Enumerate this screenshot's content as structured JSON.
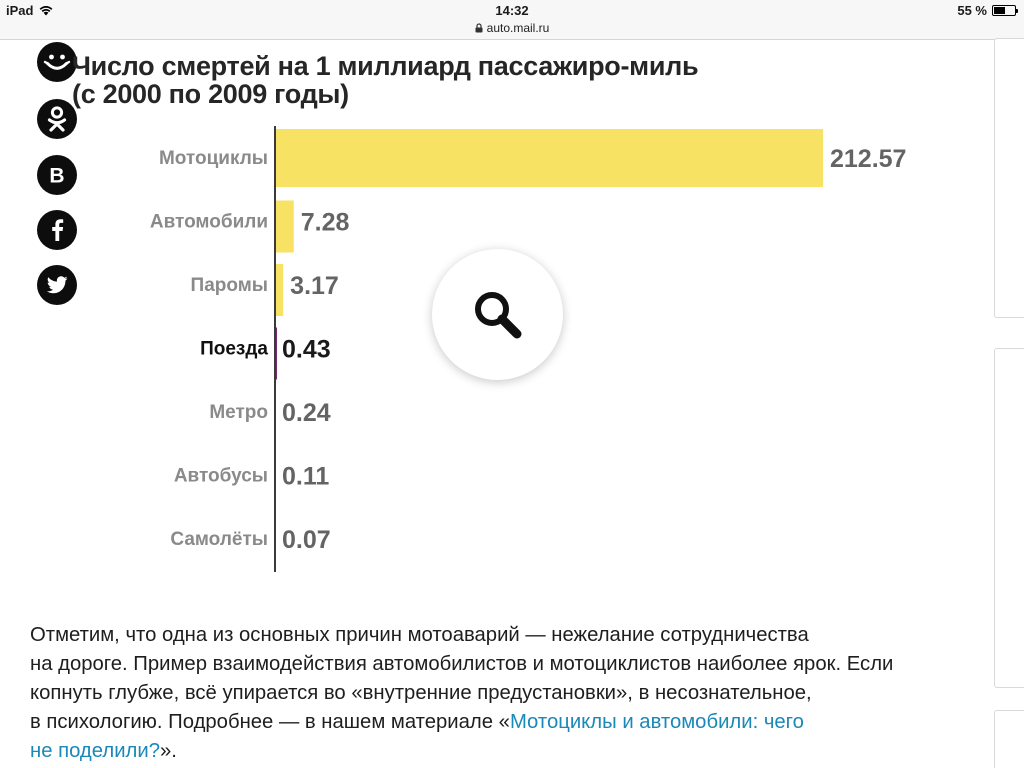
{
  "status_bar": {
    "device": "iPad",
    "time": "14:32",
    "battery": "55 %",
    "battery_level": 0.55,
    "url": "auto.mail.ru"
  },
  "share": {
    "icons": [
      "ok-smile-icon",
      "odnoklassniki-icon",
      "vk-icon",
      "facebook-icon",
      "twitter-icon"
    ]
  },
  "chart_data": {
    "type": "bar",
    "orientation": "horizontal",
    "title_line1": "Число смертей на 1 миллиард пассажиро-миль",
    "title_line2": "(с 2000 по 2009 годы)",
    "categories": [
      "Мотоциклы",
      "Автомобили",
      "Паромы",
      "Поезда",
      "Метро",
      "Автобусы",
      "Самолёты"
    ],
    "values": [
      212.57,
      7.28,
      3.17,
      0.43,
      0.24,
      0.11,
      0.07
    ],
    "labels": [
      "212.57",
      "7.28",
      "3.17",
      "0.43",
      "0.24",
      "0.11",
      "0.07"
    ],
    "highlight": "Поезда",
    "colors": {
      "bar": "#f7e263",
      "highlight": "#7a2a6e",
      "label": "#646464",
      "label_highlight": "#1a1a1a",
      "axis": "#3a3a3a"
    },
    "xlim": [
      0,
      212.57
    ]
  },
  "paragraph": {
    "line1": "Отметим, что одна из основных причин мотоаварий — нежелание сотрудничества",
    "line2": "на дороге. Пример взаимодействия автомобилистов и мотоциклистов наиболее ярок. Если",
    "line3": "копнуть глубже, всё упирается во «внутренние предустановки», в несознательное,",
    "line4_pre": "в психологию. Подробнее — в нашем материале «",
    "link_part1": "Мотоциклы и автомобили: чего",
    "link_part2": "не поделили?",
    "line5_post": "»."
  }
}
